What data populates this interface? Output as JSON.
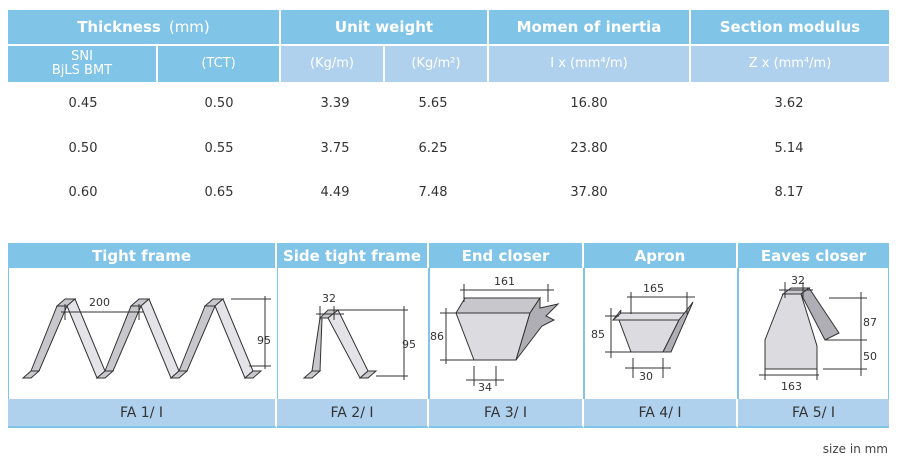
{
  "spec_table": {
    "headers": {
      "thickness": "Thickness",
      "thickness_unit": "(mm)",
      "unit_weight": "Unit weight",
      "inertia": "Momen of  inertia",
      "modulus": "Section modulus"
    },
    "subheaders": {
      "sni_line1": "SNI",
      "sni_line2": "BjLS BMT",
      "tct": "(TCT)",
      "kgm": "(Kg/m)",
      "kgm2": "(Kg/m²)",
      "ix": "I x (mm⁴/m)",
      "zx": "Z x (mm⁴/m)"
    },
    "rows": [
      [
        "0.45",
        "0.50",
        "3.39",
        "5.65",
        "16.80",
        "3.62"
      ],
      [
        "0.50",
        "0.55",
        "3.75",
        "6.25",
        "23.80",
        "5.14"
      ],
      [
        "0.60",
        "0.65",
        "4.49",
        "7.48",
        "37.80",
        "8.17"
      ]
    ]
  },
  "accessories": [
    {
      "name": "Tight frame",
      "code": "FA 1/ I",
      "dims": [
        "200",
        "95"
      ]
    },
    {
      "name": "Side tight frame",
      "code": "FA 2/ I",
      "dims": [
        "32",
        "95"
      ]
    },
    {
      "name": "End closer",
      "code": "FA 3/ I",
      "dims": [
        "161",
        "86",
        "34"
      ]
    },
    {
      "name": "Apron",
      "code": "FA 4/ I",
      "dims": [
        "165",
        "85",
        "30"
      ]
    },
    {
      "name": "Eaves closer",
      "code": "FA 5/ I",
      "dims": [
        "32",
        "87",
        "50",
        "163"
      ]
    }
  ],
  "note": "size in mm",
  "colors": {
    "header": "#80c4e8",
    "subheader": "#b0d1ee"
  }
}
